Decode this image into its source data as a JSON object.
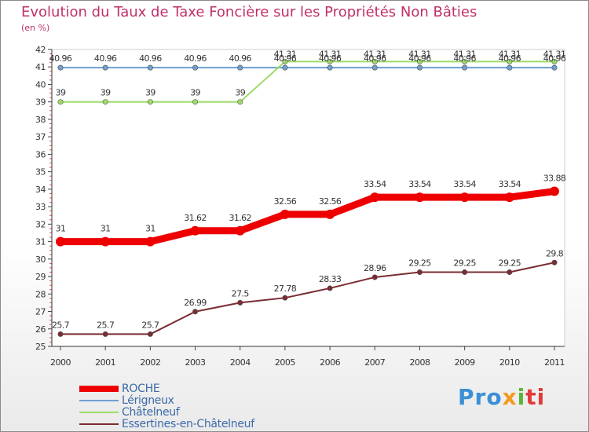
{
  "chart_data": {
    "type": "line",
    "title": "Evolution du Taux de Taxe Foncière sur les Propriétés Non Bâties",
    "unit_label": "(en %)",
    "xlabel": "",
    "ylabel": "(en %)",
    "ylim": [
      25,
      42
    ],
    "grid": false,
    "legend_position": "bottom-left",
    "categories": [
      "2000",
      "2001",
      "2002",
      "2003",
      "2004",
      "2005",
      "2006",
      "2007",
      "2008",
      "2009",
      "2010",
      "2011"
    ],
    "yticks": [
      25,
      26,
      27,
      28,
      29,
      30,
      31,
      32,
      33,
      34,
      35,
      36,
      37,
      38,
      39,
      40,
      41,
      42
    ],
    "series": [
      {
        "name": "ROCHE",
        "color": "#ee0000",
        "values": [
          31,
          31,
          31,
          31.62,
          31.62,
          32.56,
          32.56,
          33.54,
          33.54,
          33.54,
          33.54,
          33.88
        ],
        "labels": [
          "31",
          "31",
          "31",
          "31.62",
          "31.62",
          "32.56",
          "32.56",
          "33.54",
          "33.54",
          "33.54",
          "33.54",
          "33.88"
        ]
      },
      {
        "name": "Lérigneux",
        "color": "#6e9fd0",
        "values": [
          40.96,
          40.96,
          40.96,
          40.96,
          40.96,
          40.96,
          40.96,
          40.96,
          40.96,
          40.96,
          40.96,
          40.96
        ],
        "labels": [
          "40.96",
          "40.96",
          "40.96",
          "40.96",
          "40.96",
          "40.96",
          "40.96",
          "40.96",
          "40.96",
          "40.96",
          "40.96",
          "40.96"
        ]
      },
      {
        "name": "Châtelneuf",
        "color": "#9edc6a",
        "values": [
          39,
          39,
          39,
          39,
          39,
          41.31,
          41.31,
          41.31,
          41.31,
          41.31,
          41.31,
          41.31
        ],
        "labels": [
          "39",
          "39",
          "39",
          "39",
          "39",
          "41.31",
          "41.31",
          "41.31",
          "41.31",
          "41.31",
          "41.31",
          "41.31"
        ]
      },
      {
        "name": "Essertines-en-Châtelneuf",
        "color": "#7a2c32",
        "values": [
          25.7,
          25.7,
          25.7,
          26.99,
          27.5,
          27.78,
          28.33,
          28.96,
          29.25,
          29.25,
          29.25,
          29.8
        ],
        "labels": [
          "25.7",
          "25.7",
          "25.7",
          "26.99",
          "27.5",
          "27.78",
          "28.33",
          "28.96",
          "29.25",
          "29.25",
          "29.25",
          "29.8"
        ]
      }
    ]
  },
  "branding": {
    "logo_text": [
      "Pro",
      "x",
      "i",
      "ti"
    ]
  }
}
